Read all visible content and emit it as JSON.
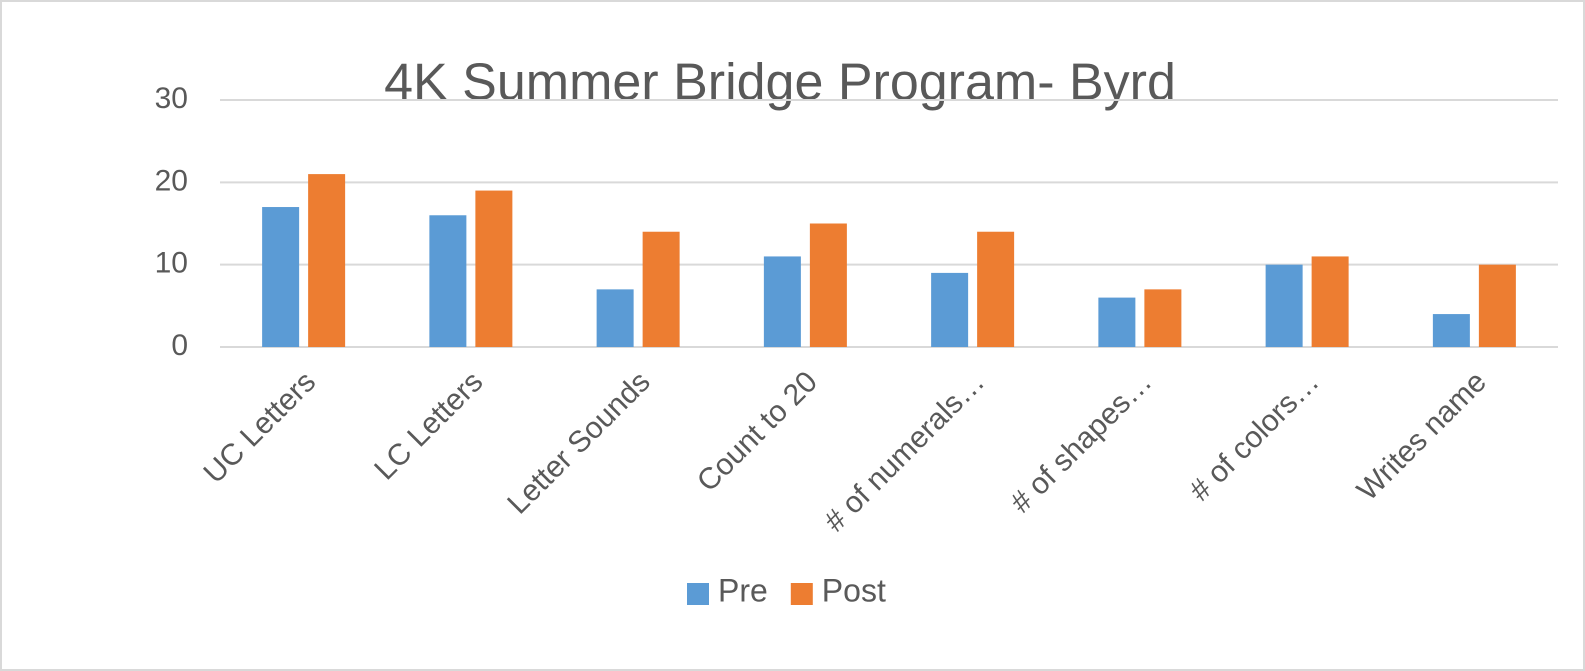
{
  "chart_data": {
    "type": "bar",
    "title": "4K Summer Bridge Program- Byrd",
    "categories": [
      "UC Letters",
      "LC Letters",
      "Letter Sounds",
      "Count to 20",
      "# of numerals…",
      "# of shapes…",
      "# of colors…",
      "Writes name"
    ],
    "series": [
      {
        "name": "Pre",
        "color": "#5b9bd5",
        "values": [
          17,
          16,
          7,
          11,
          9,
          6,
          10,
          4
        ]
      },
      {
        "name": "Post",
        "color": "#ed7d31",
        "values": [
          21,
          19,
          14,
          15,
          14,
          7,
          11,
          10
        ]
      }
    ],
    "ylim": [
      0,
      30
    ],
    "yticks": [
      0,
      10,
      20,
      30
    ],
    "grid": true,
    "legend": "bottom"
  }
}
